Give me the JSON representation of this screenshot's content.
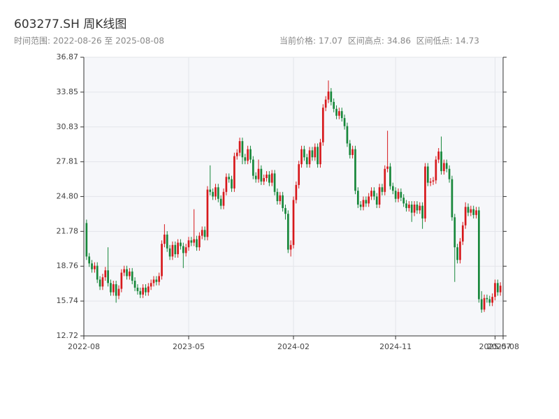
{
  "chart_data": {
    "type": "candlestick",
    "title": "603277.SH 周K线图",
    "subtitle": "时间范围: 2022-08-26 至 2025-08-08",
    "annotation": "当前价格: 17.07  区间高点: 34.86  区间低点: 14.73",
    "up_color": "#d7191c",
    "down_color": "#17873a",
    "grid": true,
    "xlim": [
      -1,
      155
    ],
    "xticks": [
      {
        "value": -1,
        "label": "2022-08"
      },
      {
        "value": 38,
        "label": "2023-05"
      },
      {
        "value": 77,
        "label": "2024-02"
      },
      {
        "value": 115,
        "label": "2024-11"
      },
      {
        "value": 152,
        "label": "2025-07"
      },
      {
        "value": 155,
        "label": "2025-08"
      }
    ],
    "ylim": [
      12.72,
      36.87
    ],
    "yticks": [
      12.72,
      15.74,
      18.76,
      21.78,
      {
        "value": 24.8,
        "label": "24.80"
      },
      27.81,
      30.83,
      33.85,
      36.87
    ],
    "open": [
      22.5,
      19.6,
      19.0,
      18.5,
      18.8,
      17.6,
      17.0,
      17.8,
      18.4,
      17.3,
      16.5,
      17.2,
      16.2,
      16.8,
      18.2,
      18.5,
      17.9,
      18.3,
      17.5,
      16.9,
      16.6,
      16.3,
      16.9,
      16.5,
      17.0,
      17.3,
      17.6,
      17.4,
      17.9,
      20.7,
      21.5,
      20.3,
      19.6,
      20.6,
      19.8,
      20.8,
      20.5,
      19.9,
      20.4,
      21.0,
      20.8,
      21.1,
      20.4,
      21.4,
      21.9,
      21.3,
      25.4,
      25.2,
      24.8,
      25.6,
      24.6,
      24.0,
      25.2,
      26.5,
      26.3,
      25.5,
      28.3,
      28.6,
      29.6,
      28.2,
      27.9,
      28.9,
      28.0,
      26.6,
      26.3,
      27.2,
      26.1,
      26.4,
      26.7,
      26.0,
      26.8,
      25.2,
      24.4,
      24.9,
      23.8,
      23.3,
      20.2,
      20.6,
      24.5,
      25.8,
      27.6,
      28.9,
      28.2,
      27.6,
      28.8,
      28.2,
      29.1,
      27.6,
      29.5,
      32.5,
      33.2,
      33.9,
      33.0,
      32.4,
      31.8,
      32.2,
      31.6,
      30.9,
      29.4,
      28.4,
      28.9,
      25.3,
      24.1,
      23.9,
      24.5,
      24.2,
      24.8,
      25.3,
      24.8,
      24.1,
      25.6,
      25.2,
      27.2,
      27.4,
      25.7,
      25.3,
      24.6,
      25.2,
      24.7,
      24.2,
      23.8,
      24.1,
      23.4,
      24.1,
      23.6,
      24.0,
      22.9,
      27.4,
      26.0,
      26.1,
      26.2,
      28.0,
      28.7,
      27.0,
      27.7,
      27.2,
      26.3,
      23.0,
      20.4,
      19.3,
      20.9,
      22.3,
      23.9,
      23.4,
      23.7,
      23.2,
      23.6,
      15.9,
      15.0,
      16.0,
      15.9,
      15.6,
      16.1,
      17.3,
      16.5
    ],
    "high": [
      22.8,
      19.9,
      19.3,
      19.1,
      19.1,
      17.9,
      18.1,
      18.7,
      20.4,
      17.6,
      17.5,
      17.5,
      17.1,
      18.5,
      18.8,
      18.8,
      18.6,
      18.6,
      17.8,
      17.2,
      16.9,
      17.2,
      17.2,
      17.3,
      17.6,
      17.9,
      17.9,
      18.2,
      21.0,
      22.4,
      21.8,
      20.6,
      20.9,
      20.9,
      21.1,
      21.1,
      20.8,
      20.7,
      21.3,
      21.3,
      23.7,
      21.4,
      21.7,
      22.2,
      22.2,
      25.7,
      27.5,
      25.5,
      25.9,
      25.9,
      24.9,
      25.5,
      26.8,
      26.8,
      26.6,
      28.6,
      28.9,
      29.9,
      29.9,
      28.5,
      29.2,
      29.2,
      28.3,
      26.9,
      28.0,
      27.5,
      26.7,
      27.0,
      27.0,
      27.1,
      27.1,
      25.5,
      25.2,
      25.2,
      24.1,
      23.6,
      21.0,
      24.8,
      26.1,
      27.9,
      29.2,
      29.2,
      28.5,
      29.1,
      29.1,
      29.4,
      29.4,
      29.8,
      32.8,
      33.5,
      34.86,
      34.2,
      33.3,
      32.7,
      32.5,
      32.5,
      31.9,
      31.2,
      29.7,
      29.2,
      29.2,
      25.6,
      24.4,
      24.8,
      24.8,
      25.1,
      25.6,
      25.6,
      25.1,
      25.9,
      25.9,
      27.5,
      30.5,
      27.7,
      26.0,
      25.6,
      25.5,
      25.5,
      25.0,
      24.5,
      24.4,
      24.4,
      24.4,
      24.4,
      24.3,
      24.3,
      27.7,
      27.7,
      26.4,
      26.5,
      28.3,
      29.0,
      30.0,
      28.0,
      28.0,
      27.5,
      26.6,
      23.3,
      20.7,
      21.2,
      22.6,
      24.3,
      24.2,
      24.0,
      24.0,
      23.9,
      23.9,
      16.6,
      16.3,
      16.3,
      16.2,
      16.4,
      17.6,
      17.6,
      17.37
    ],
    "low": [
      19.3,
      18.7,
      18.2,
      18.2,
      17.3,
      16.7,
      16.7,
      17.5,
      17.0,
      16.2,
      16.2,
      15.6,
      15.9,
      16.5,
      17.9,
      17.6,
      17.6,
      17.2,
      16.6,
      16.3,
      16.0,
      16.0,
      16.2,
      16.2,
      16.7,
      17.0,
      17.1,
      17.1,
      17.6,
      20.4,
      20.0,
      19.3,
      19.3,
      19.5,
      19.5,
      20.2,
      18.6,
      19.6,
      20.1,
      20.5,
      20.5,
      20.1,
      20.1,
      21.1,
      21.0,
      21.0,
      24.9,
      24.5,
      24.5,
      24.3,
      23.7,
      23.7,
      24.9,
      26.0,
      25.2,
      25.2,
      28.0,
      28.3,
      27.6,
      27.6,
      27.6,
      27.7,
      26.3,
      26.0,
      26.0,
      25.8,
      25.8,
      26.1,
      25.7,
      25.7,
      24.9,
      24.1,
      24.1,
      23.5,
      22.8,
      19.9,
      19.6,
      20.3,
      24.2,
      25.5,
      27.3,
      27.9,
      27.3,
      27.3,
      27.9,
      27.9,
      27.3,
      27.3,
      29.2,
      32.2,
      32.9,
      32.7,
      32.1,
      31.5,
      31.5,
      31.3,
      30.6,
      29.1,
      28.1,
      28.1,
      25.0,
      23.8,
      23.6,
      23.6,
      23.9,
      23.9,
      24.5,
      24.5,
      23.8,
      23.8,
      24.9,
      24.9,
      26.9,
      25.4,
      25.0,
      24.3,
      24.3,
      24.4,
      23.9,
      23.5,
      23.5,
      22.6,
      23.1,
      23.3,
      23.3,
      22.0,
      22.6,
      25.7,
      25.7,
      25.8,
      25.9,
      27.7,
      26.7,
      26.7,
      26.9,
      26.0,
      22.7,
      17.4,
      19.0,
      19.0,
      20.6,
      22.0,
      23.1,
      23.1,
      22.9,
      22.9,
      15.6,
      14.73,
      14.8,
      15.6,
      15.3,
      15.3,
      15.8,
      16.2,
      16.2
    ],
    "close": [
      19.6,
      19.0,
      18.5,
      18.8,
      17.6,
      17.0,
      17.8,
      18.4,
      17.3,
      16.5,
      17.2,
      16.2,
      16.8,
      18.2,
      18.5,
      17.9,
      18.3,
      17.5,
      16.9,
      16.6,
      16.3,
      16.9,
      16.5,
      17.0,
      17.3,
      17.6,
      17.4,
      17.9,
      20.7,
      21.5,
      20.3,
      19.6,
      20.6,
      19.8,
      20.8,
      20.5,
      19.9,
      20.4,
      21.0,
      20.8,
      21.1,
      20.4,
      21.4,
      21.9,
      21.3,
      25.4,
      25.2,
      24.8,
      25.6,
      24.6,
      24.0,
      25.2,
      26.5,
      26.3,
      25.5,
      28.3,
      28.6,
      29.6,
      28.2,
      27.9,
      28.9,
      28.0,
      26.6,
      26.3,
      27.2,
      26.1,
      26.4,
      26.7,
      26.0,
      26.8,
      25.2,
      24.4,
      24.9,
      23.8,
      23.3,
      20.2,
      20.6,
      24.5,
      25.8,
      27.6,
      28.9,
      28.2,
      27.6,
      28.8,
      28.2,
      29.1,
      27.6,
      29.5,
      32.5,
      33.2,
      33.9,
      33.0,
      32.4,
      31.8,
      32.2,
      31.6,
      30.9,
      29.4,
      28.4,
      28.9,
      25.3,
      24.1,
      23.9,
      24.5,
      24.2,
      24.8,
      25.3,
      24.8,
      24.1,
      25.6,
      25.2,
      27.2,
      27.4,
      25.7,
      25.3,
      24.6,
      25.2,
      24.7,
      24.2,
      23.8,
      24.1,
      23.4,
      24.1,
      23.6,
      24.0,
      22.9,
      27.4,
      26.0,
      26.1,
      26.2,
      28.0,
      28.7,
      27.0,
      27.7,
      27.2,
      26.3,
      23.0,
      20.4,
      19.3,
      20.9,
      22.3,
      23.9,
      23.4,
      23.7,
      23.2,
      23.6,
      15.9,
      15.0,
      16.0,
      15.9,
      15.6,
      16.1,
      17.3,
      16.5,
      17.07
    ]
  }
}
